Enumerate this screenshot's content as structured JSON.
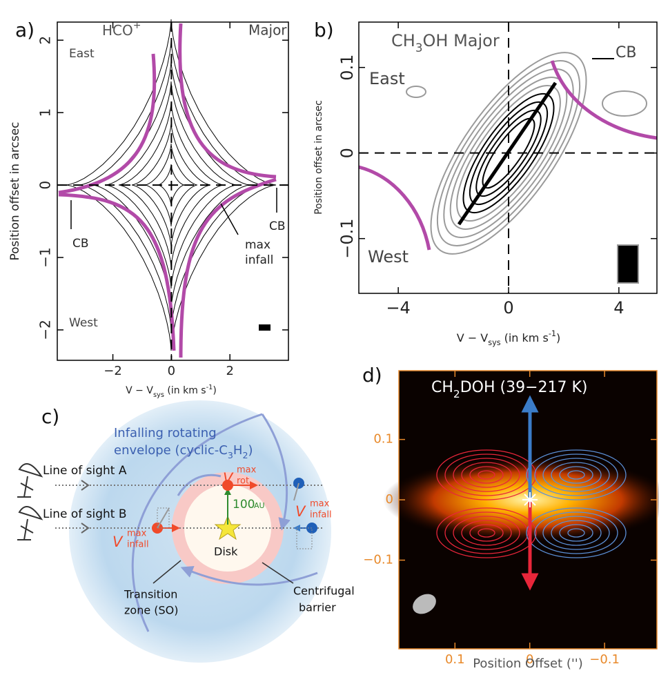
{
  "chart_data": [
    {
      "type": "pv",
      "panel_label": "a)",
      "title": [
        [
          "HCO",
          ""
        ],
        [
          "+",
          "sup"
        ]
      ],
      "annotations": [
        "Major",
        "East",
        "West",
        "CB",
        "CB",
        "max",
        "infall"
      ],
      "xlabel": [
        [
          "V − V",
          ""
        ],
        [
          "sys",
          "sub"
        ],
        [
          " (in km s",
          ""
        ],
        [
          "-1",
          "sup"
        ],
        [
          ")",
          ""
        ]
      ],
      "ylabel": [
        [
          "Position offset in arcsec",
          ""
        ]
      ],
      "xlim": [
        -3.9,
        4.0
      ],
      "xticks": [
        {
          "value": -2,
          "label": "−2"
        },
        0,
        2
      ],
      "ylim": [
        -2.42,
        2.25
      ],
      "yticks": [
        {
          "value": -2,
          "label": "−2"
        },
        {
          "value": -1,
          "label": "−1"
        },
        0,
        1,
        2
      ],
      "ytick_rotate": true,
      "zero_lines": true,
      "frame_color": "#000000",
      "tick_label_color": "#222222"
    },
    {
      "type": "pv",
      "panel_label": "b)",
      "title": [
        [
          "CH",
          ""
        ],
        [
          "3",
          "sub"
        ],
        [
          "OH Major",
          ""
        ]
      ],
      "annotations": [
        "CB",
        "East",
        "West"
      ],
      "xlabel": [
        [
          "V − V",
          ""
        ],
        [
          "sys",
          "sub"
        ],
        [
          " (in km s",
          ""
        ],
        [
          "-1",
          "sup"
        ],
        [
          ")",
          ""
        ]
      ],
      "ylabel": [
        [
          "Position offset in arcsec",
          ""
        ]
      ],
      "xlim": [
        -5.43,
        5.38
      ],
      "xticks": [
        {
          "value": -4,
          "label": "−4"
        },
        0,
        4
      ],
      "ylim": [
        -0.164,
        0.153
      ],
      "yticks": [
        {
          "value": -0.1,
          "label": "−0.1"
        },
        0,
        0.1
      ],
      "ytick_rotate": true,
      "zero_lines": true,
      "frame_color": "#000000",
      "tick_label_color": "#222222"
    },
    {
      "type": "map",
      "panel_label": "d)",
      "title": [
        [
          "CH",
          ""
        ],
        [
          "2",
          "sub"
        ],
        [
          "DOH (39−217 K)",
          ""
        ]
      ],
      "annotations": [],
      "xlabel": [
        [
          "Position Offset ('')",
          ""
        ]
      ],
      "ylabel": [],
      "xlim": [
        0.175,
        -0.17
      ],
      "xticks": [
        0.1,
        0,
        {
          "value": -0.1,
          "label": "−0.1"
        }
      ],
      "ylim": [
        -0.247,
        0.214
      ],
      "yticks": [
        {
          "value": -0.1,
          "label": "−0.1"
        },
        0,
        0.1
      ],
      "ytick_rotate": false,
      "zero_lines": false,
      "frame_color": "#e8892a",
      "tick_label_color": "#e8892a"
    }
  ],
  "diagram": {
    "panel_label": "c)",
    "texts": [
      "Infalling rotating",
      [
        [
          "envelope (cyclic-C",
          ""
        ],
        [
          "3",
          "sub"
        ],
        [
          "H",
          ""
        ],
        [
          "2",
          "sub"
        ],
        [
          ")",
          ""
        ]
      ],
      "Line of sight A",
      "Line of sight B",
      "V",
      "max",
      "rot",
      "V",
      "max",
      "infall",
      "V",
      "max",
      "infall",
      "100",
      "AU",
      "Disk",
      "Transition",
      "zone (SO)",
      "Centrifugal",
      "barrier"
    ]
  }
}
